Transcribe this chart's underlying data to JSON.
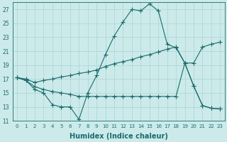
{
  "bg_color": "#cceaea",
  "grid_color": "#aad4d4",
  "line_color": "#1a6b6b",
  "line_width": 0.8,
  "marker": "+",
  "markersize": 4,
  "markeredgewidth": 0.8,
  "xlabel": "Humidex (Indice chaleur)",
  "xlabel_fontsize": 7,
  "tick_fontsize": 5.5,
  "xlim": [
    -0.5,
    23.5
  ],
  "ylim": [
    11,
    28
  ],
  "yticks": [
    11,
    13,
    15,
    17,
    19,
    21,
    23,
    25,
    27
  ],
  "xticks": [
    0,
    1,
    2,
    3,
    4,
    5,
    6,
    7,
    8,
    9,
    10,
    11,
    12,
    13,
    14,
    15,
    16,
    17,
    18,
    19,
    20,
    21,
    22,
    23
  ],
  "line1_x": [
    0,
    1,
    2,
    3,
    4,
    5,
    6,
    7,
    8,
    9,
    10,
    11,
    12,
    13,
    14,
    15,
    16,
    17,
    18,
    19,
    20,
    21,
    22,
    23
  ],
  "line1_y": [
    17.2,
    16.8,
    15.5,
    15.0,
    13.3,
    13.0,
    13.0,
    11.2,
    15.0,
    17.5,
    20.5,
    23.2,
    25.2,
    27.0,
    26.8,
    27.8,
    26.8,
    22.0,
    21.5,
    19.3,
    16.0,
    13.2,
    12.8,
    12.7
  ],
  "line2_x": [
    0,
    1,
    2,
    3,
    4,
    5,
    6,
    7,
    8,
    9,
    10,
    11,
    12,
    13,
    14,
    15,
    16,
    17,
    18,
    19,
    20,
    21,
    22,
    23
  ],
  "line2_y": [
    17.2,
    16.8,
    15.9,
    15.5,
    15.2,
    15.0,
    14.8,
    14.5,
    14.5,
    14.5,
    14.5,
    14.5,
    14.5,
    14.5,
    14.5,
    14.5,
    14.5,
    14.5,
    14.5,
    19.3,
    16.0,
    13.2,
    12.8,
    12.7
  ],
  "line3_x": [
    0,
    1,
    2,
    3,
    4,
    5,
    6,
    7,
    8,
    9,
    10,
    11,
    12,
    13,
    14,
    15,
    16,
    17,
    18,
    19,
    20,
    21,
    22,
    23
  ],
  "line3_y": [
    17.2,
    17.0,
    16.5,
    16.8,
    17.0,
    17.3,
    17.5,
    17.8,
    18.0,
    18.3,
    18.8,
    19.2,
    19.5,
    19.8,
    20.2,
    20.5,
    20.9,
    21.3,
    21.6,
    19.3,
    19.3,
    21.6,
    22.0,
    22.3
  ]
}
